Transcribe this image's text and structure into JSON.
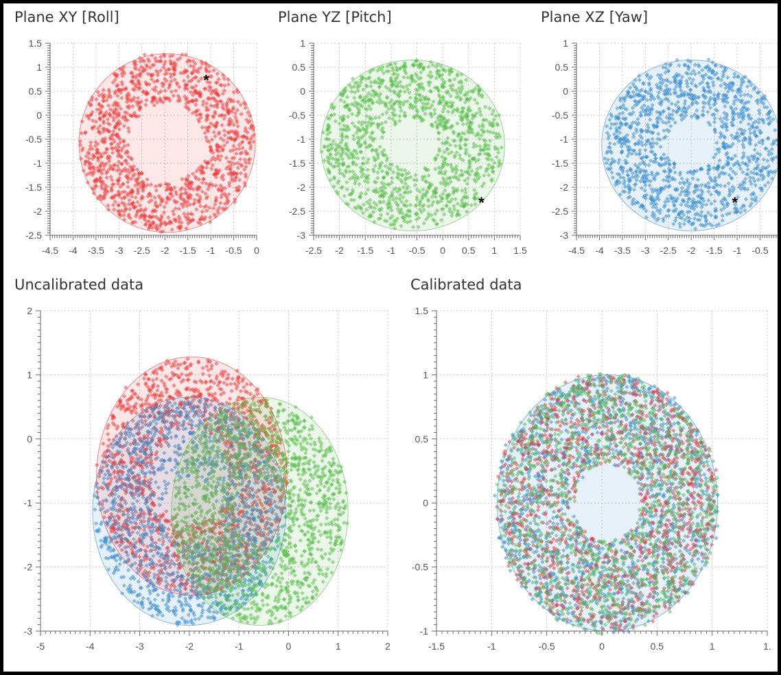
{
  "colors": {
    "x_series": "#ee3a3a",
    "y_series": "#58c04a",
    "z_series": "#3a8fd1",
    "grid": "#c8c8c8",
    "axis": "#666666",
    "marker": "#000000"
  },
  "marker_symbol": "*",
  "chart_data": [
    {
      "type": "scatter",
      "title": "Plane XY [Roll]",
      "xlim": [
        -4.5,
        0
      ],
      "ylim": [
        -2.5,
        1.5
      ],
      "xticks": [
        "-4.5",
        "-4",
        "-3.5",
        "-3",
        "-2.5",
        "-2",
        "-1.5",
        "-1",
        "-0.5",
        "0"
      ],
      "yticks": [
        "1.5",
        "1",
        "0.5",
        "0",
        "-0.5",
        "-1",
        "-1.5",
        "-2",
        "-2.5"
      ],
      "grid": true,
      "series": [
        {
          "color": "#ee3a3a",
          "shape": "ring",
          "cx": -1.95,
          "cy": -0.58,
          "rx": 1.9,
          "ry": 1.85,
          "inner": 0.45,
          "points": 1300
        }
      ],
      "fit_ellipse": {
        "cx": -1.95,
        "cy": -0.58,
        "rx": 1.92,
        "ry": 1.86
      },
      "marker": {
        "x": -1.1,
        "y": 0.75
      }
    },
    {
      "type": "scatter",
      "title": "Plane YZ [Pitch]",
      "xlim": [
        -2.5,
        1.5
      ],
      "ylim": [
        -3,
        1
      ],
      "xticks": [
        "-2.5",
        "-2",
        "-1.5",
        "-1",
        "-0.5",
        "0",
        "0.5",
        "1",
        "1.5"
      ],
      "yticks": [
        "1",
        "0.5",
        "0",
        "-0.5",
        "-1",
        "-1.5",
        "-2",
        "-2.5",
        "-3"
      ],
      "grid": true,
      "series": [
        {
          "color": "#58c04a",
          "shape": "ring",
          "cx": -0.6,
          "cy": -1.1,
          "rx": 1.75,
          "ry": 1.75,
          "inner": 0.3,
          "points": 1300
        }
      ],
      "fit_ellipse": {
        "cx": -0.58,
        "cy": -1.13,
        "rx": 1.78,
        "ry": 1.78
      },
      "marker": {
        "x": 0.75,
        "y": -2.3
      }
    },
    {
      "type": "scatter",
      "title": "Plane XZ [Yaw]",
      "xlim": [
        -4.5,
        0
      ],
      "ylim": [
        -3,
        1
      ],
      "xticks": [
        "-4.5",
        "-4",
        "-3.5",
        "-3",
        "-2.5",
        "-2",
        "-1.5",
        "-1",
        "-0.5",
        ""
      ],
      "yticks": [
        "1",
        "0.5",
        "0",
        "-0.5",
        "-1",
        "-1.5",
        "-2",
        "-2.5",
        "-3"
      ],
      "grid": true,
      "series": [
        {
          "color": "#3a8fd1",
          "shape": "ring",
          "cx": -2.0,
          "cy": -1.1,
          "rx": 1.9,
          "ry": 1.75,
          "inner": 0.3,
          "points": 1300
        }
      ],
      "fit_ellipse": {
        "cx": -2.0,
        "cy": -1.13,
        "rx": 1.95,
        "ry": 1.78
      },
      "marker": {
        "x": -1.05,
        "y": -2.3
      }
    },
    {
      "type": "scatter",
      "title": "Uncalibrated data",
      "xlim": [
        -5,
        2
      ],
      "ylim": [
        -3,
        2
      ],
      "xticks": [
        "-5",
        "-4",
        "-3",
        "-2",
        "-1",
        "0",
        "1",
        "2"
      ],
      "yticks": [
        "2",
        "1",
        "0",
        "-1",
        "-2",
        "-3"
      ],
      "grid": true,
      "series": [
        {
          "color": "#ee3a3a",
          "shape": "ring",
          "cx": -1.95,
          "cy": -0.58,
          "rx": 1.9,
          "ry": 1.85,
          "inner": 0.4,
          "points": 1500
        },
        {
          "color": "#3a8fd1",
          "shape": "ring",
          "cx": -2.0,
          "cy": -1.13,
          "rx": 1.9,
          "ry": 1.75,
          "inner": 0.3,
          "points": 1500
        },
        {
          "color": "#58c04a",
          "shape": "ring",
          "cx": -0.58,
          "cy": -1.13,
          "rx": 1.75,
          "ry": 1.75,
          "inner": 0.3,
          "points": 1500
        }
      ],
      "fit_ellipses": [
        {
          "cx": -1.95,
          "cy": -0.58,
          "rx": 1.92,
          "ry": 1.86
        },
        {
          "cx": -2.0,
          "cy": -1.13,
          "rx": 1.95,
          "ry": 1.78
        },
        {
          "cx": -0.58,
          "cy": -1.13,
          "rx": 1.78,
          "ry": 1.78
        }
      ]
    },
    {
      "type": "scatter",
      "title": "Calibrated data",
      "xlim": [
        -1.5,
        1.5
      ],
      "ylim": [
        -1,
        1.5
      ],
      "xticks": [
        "-1.5",
        "-1",
        "-0.5",
        "0",
        "0.5",
        "1",
        "1."
      ],
      "yticks": [
        "1.5",
        "1",
        "0.5",
        "0",
        "-0.5",
        "-1"
      ],
      "grid": true,
      "series": [
        {
          "color": "#3a8fd1",
          "shape": "ring",
          "cx": 0.05,
          "cy": 0.0,
          "rx": 1.0,
          "ry": 1.0,
          "inner": 0.3,
          "points": 1400
        },
        {
          "color": "#ee3a3a",
          "shape": "ring",
          "cx": 0.05,
          "cy": 0.0,
          "rx": 1.0,
          "ry": 1.0,
          "inner": 0.3,
          "points": 1400
        },
        {
          "color": "#58c04a",
          "shape": "ring",
          "cx": 0.05,
          "cy": 0.0,
          "rx": 1.0,
          "ry": 1.0,
          "inner": 0.3,
          "points": 1400
        }
      ],
      "fit_ellipses": [
        {
          "cx": 0.05,
          "cy": 0.0,
          "rx": 1.0,
          "ry": 1.0
        }
      ]
    }
  ]
}
